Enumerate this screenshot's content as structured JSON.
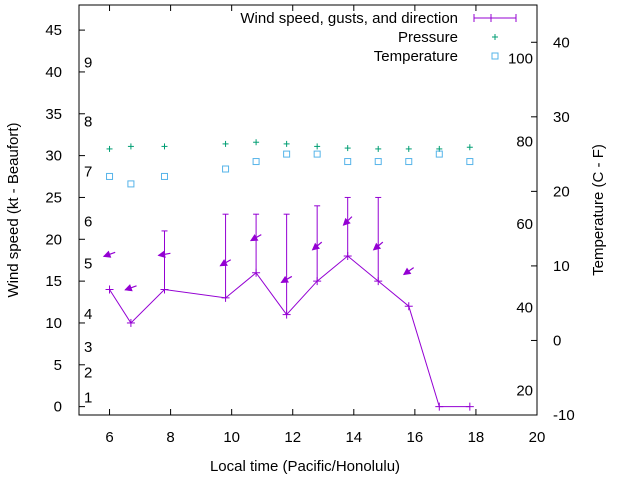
{
  "chart_data": {
    "type": "line",
    "xlabel": "Local time (Pacific/Honolulu)",
    "ylabel_left": "Wind speed (kt - Beaufort)",
    "ylabel_right": "Temperature (C - F)",
    "xlim": [
      5,
      20
    ],
    "ylim_left": [
      -1,
      48
    ],
    "ylim_right": [
      -10,
      45
    ],
    "x_ticks": [
      6,
      8,
      10,
      12,
      14,
      16,
      18,
      20
    ],
    "y_left_ticks": [
      0,
      5,
      10,
      15,
      20,
      25,
      30,
      35,
      40,
      45
    ],
    "y_right_ticks": [
      -10,
      0,
      10,
      20,
      30,
      40
    ],
    "beaufort_labels": [
      {
        "text": "1",
        "at_kt": 1.1
      },
      {
        "text": "2",
        "at_kt": 4.1
      },
      {
        "text": "3",
        "at_kt": 7.1
      },
      {
        "text": "4",
        "at_kt": 11.1
      },
      {
        "text": "5",
        "at_kt": 17.1
      },
      {
        "text": "6",
        "at_kt": 22.1
      },
      {
        "text": "7",
        "at_kt": 28.1
      },
      {
        "text": "8",
        "at_kt": 34.1
      },
      {
        "text": "9",
        "at_kt": 41.1
      }
    ],
    "fahrenheit_labels": [
      {
        "text": "20",
        "at_c": -6.7
      },
      {
        "text": "40",
        "at_c": 4.4
      },
      {
        "text": "60",
        "at_c": 15.6
      },
      {
        "text": "80",
        "at_c": 26.7
      },
      {
        "text": "100",
        "at_c": 37.8
      }
    ],
    "legend": {
      "position": "top-right",
      "entries": [
        "Wind speed, gusts, and direction",
        "Pressure",
        "Temperature"
      ]
    },
    "colors": {
      "wind": "#9400d3",
      "pressure": "#009e73",
      "temperature": "#56b4e9",
      "frame": "#000000"
    },
    "series": [
      {
        "name": "Wind speed, gusts, and direction",
        "x": [
          6,
          6.7,
          7.8,
          9.8,
          10.8,
          11.8,
          12.8,
          13.8,
          14.8,
          15.8,
          16.8,
          17.8
        ],
        "wind_kt": [
          14,
          10,
          14,
          13,
          16,
          11,
          15,
          18,
          15,
          12,
          0,
          0
        ],
        "gust_kt": [
          null,
          null,
          21,
          23,
          23,
          23,
          24,
          25,
          25,
          null,
          null,
          null
        ],
        "arrow_direction_deg": [
          70,
          70,
          80,
          60,
          60,
          60,
          50,
          45,
          50,
          55,
          null,
          null
        ]
      },
      {
        "name": "Pressure",
        "x": [
          6,
          6.7,
          7.8,
          9.8,
          10.8,
          11.8,
          12.8,
          13.8,
          14.8,
          15.8,
          16.8,
          17.8
        ],
        "values": [
          30.8,
          31.1,
          31.1,
          31.4,
          31.6,
          31.4,
          31.1,
          30.9,
          30.8,
          30.8,
          30.8,
          31.0
        ]
      },
      {
        "name": "Temperature",
        "x": [
          6,
          6.7,
          7.8,
          9.8,
          10.8,
          11.8,
          12.8,
          13.8,
          14.8,
          15.8,
          16.8,
          17.8
        ],
        "values_c": [
          22,
          21,
          22,
          23,
          24,
          25,
          25,
          24,
          24,
          24,
          25,
          24
        ]
      }
    ]
  }
}
